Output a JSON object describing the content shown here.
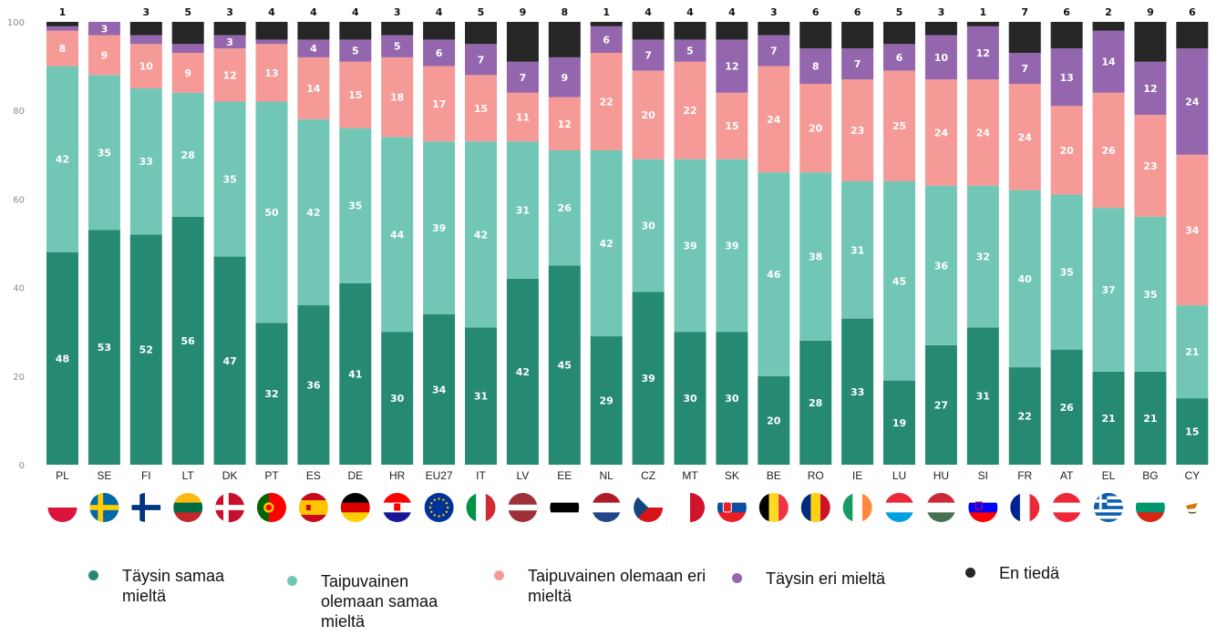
{
  "chart_data": {
    "type": "bar",
    "stacked": true,
    "title": "",
    "xlabel": "",
    "ylabel": "",
    "ylim": [
      0,
      100
    ],
    "yticks": [
      0,
      20,
      40,
      60,
      80,
      100
    ],
    "grid": false,
    "legend_position": "bottom",
    "categories": [
      "PL",
      "SE",
      "FI",
      "LT",
      "DK",
      "PT",
      "ES",
      "DE",
      "HR",
      "EU27",
      "IT",
      "LV",
      "EE",
      "NL",
      "CZ",
      "MT",
      "SK",
      "BE",
      "RO",
      "IE",
      "LU",
      "HU",
      "SI",
      "FR",
      "AT",
      "EL",
      "BG",
      "CY"
    ],
    "series": [
      {
        "name": "Täysin samaa mieltä",
        "color": "#268a72",
        "values": [
          48,
          53,
          52,
          56,
          47,
          32,
          36,
          41,
          30,
          34,
          31,
          42,
          45,
          29,
          39,
          30,
          30,
          20,
          28,
          33,
          19,
          27,
          31,
          22,
          26,
          21,
          21,
          15
        ]
      },
      {
        "name": "Taipuvainen olemaan samaa mieltä",
        "color": "#72c6b6",
        "values": [
          42,
          35,
          33,
          28,
          35,
          50,
          42,
          35,
          44,
          39,
          42,
          31,
          26,
          42,
          30,
          39,
          39,
          46,
          38,
          31,
          45,
          36,
          32,
          40,
          35,
          37,
          35,
          21
        ]
      },
      {
        "name": "Taipuvainen olemaan eri mieltä",
        "color": "#f59a96",
        "values": [
          8,
          9,
          10,
          9,
          12,
          13,
          14,
          15,
          18,
          17,
          15,
          11,
          12,
          22,
          20,
          22,
          15,
          24,
          20,
          23,
          25,
          24,
          24,
          24,
          20,
          26,
          23,
          34
        ]
      },
      {
        "name": "Täysin eri mieltä",
        "color": "#9366ad",
        "values": [
          1,
          3,
          2,
          2,
          3,
          1,
          4,
          5,
          5,
          6,
          7,
          7,
          9,
          6,
          7,
          5,
          12,
          7,
          8,
          7,
          6,
          10,
          12,
          7,
          13,
          14,
          12,
          24
        ]
      },
      {
        "name": "En tiedä",
        "color": "#262626",
        "values": [
          1,
          0,
          3,
          5,
          3,
          4,
          4,
          4,
          3,
          4,
          5,
          9,
          8,
          1,
          4,
          4,
          4,
          3,
          6,
          6,
          5,
          3,
          1,
          7,
          6,
          2,
          9,
          6
        ]
      }
    ],
    "labels": [
      [
        "48",
        "53",
        "52",
        "56",
        "47",
        "32",
        "36",
        "41",
        "30",
        "34",
        "31",
        "42",
        "45",
        "29",
        "39",
        "30",
        "30",
        "20",
        "28",
        "33",
        "19",
        "27",
        "31",
        "22",
        "26",
        "21",
        "21",
        "15"
      ],
      [
        "42",
        "35",
        "33",
        "28",
        "35",
        "50",
        "42",
        "35",
        "44",
        "39",
        "42",
        "31",
        "26",
        "42",
        "30",
        "39",
        "39",
        "46",
        "38",
        "31",
        "45",
        "36",
        "32",
        "40",
        "35",
        "37",
        "35",
        "21"
      ],
      [
        "8",
        "9",
        "10",
        "9",
        "12",
        "13",
        "14",
        "15",
        "18",
        "17",
        "15",
        "11",
        "12",
        "22",
        "20",
        "22",
        "15",
        "24",
        "20",
        "23",
        "25",
        "24",
        "24",
        "24",
        "20",
        "26",
        "23",
        "34"
      ],
      [
        "",
        "3",
        "",
        "",
        "3",
        "",
        "4",
        "5",
        "5",
        "6",
        "7",
        "7",
        "9",
        "6",
        "7",
        "5",
        "12",
        "7",
        "8",
        "7",
        "6",
        "10",
        "12",
        "7",
        "13",
        "14",
        "12",
        "24"
      ],
      [
        "1",
        "",
        "3",
        "5",
        "3",
        "4",
        "4",
        "4",
        "3",
        "4",
        "5",
        "9",
        "8",
        "1",
        "4",
        "4",
        "4",
        "3",
        "6",
        "6",
        "5",
        "3",
        "1",
        "7",
        "6",
        "2",
        "9",
        "6"
      ]
    ],
    "flags": [
      "PL",
      "SE",
      "FI",
      "LT",
      "DK",
      "PT",
      "ES",
      "DE",
      "HR",
      "EU",
      "IT",
      "LV",
      "EE",
      "NL",
      "CZ",
      "MT",
      "SK",
      "BE",
      "RO",
      "IE",
      "LU",
      "HU",
      "SI",
      "FR",
      "AT",
      "EL",
      "BG",
      "CY"
    ]
  },
  "legend": [
    {
      "label": "Täysin samaa mieltä",
      "color": "#268a72"
    },
    {
      "label": "Taipuvainen olemaan samaa mieltä",
      "color": "#72c6b6"
    },
    {
      "label": "Taipuvainen olemaan eri mieltä",
      "color": "#f59a96"
    },
    {
      "label": "Täysin eri mieltä",
      "color": "#9366ad"
    },
    {
      "label": "En tiedä",
      "color": "#262626"
    }
  ]
}
